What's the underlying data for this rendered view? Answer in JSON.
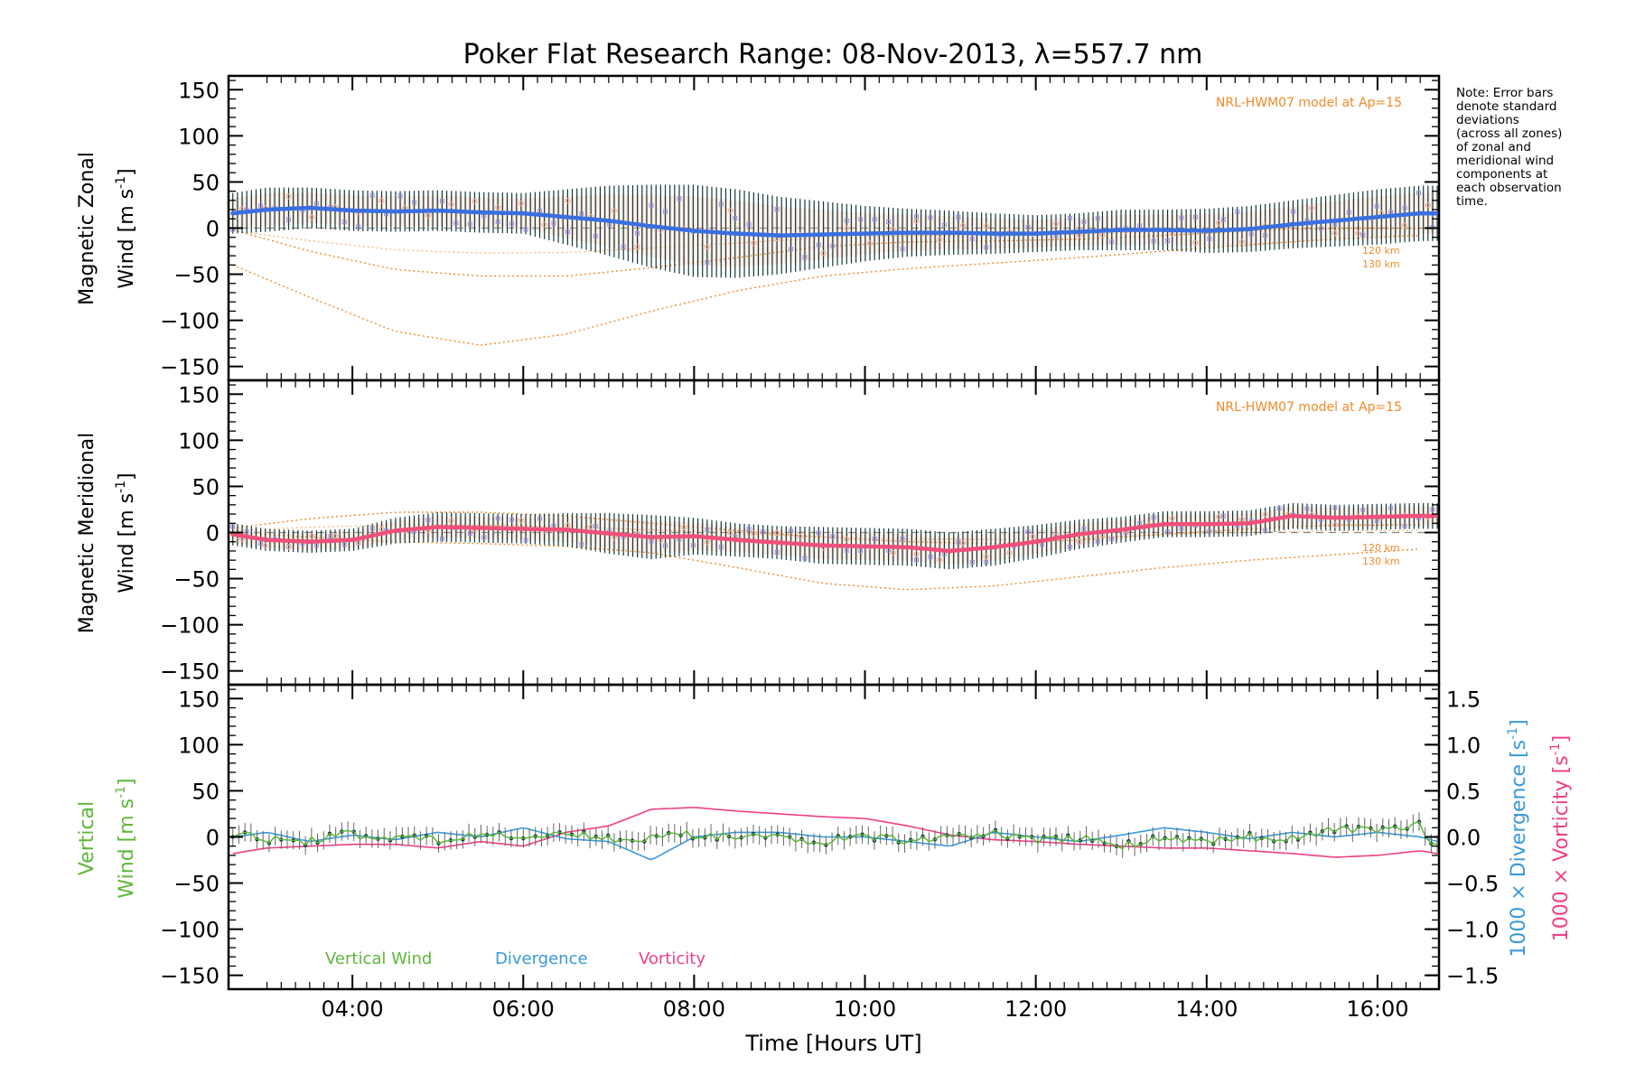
{
  "title": "Poker Flat Research Range: 08-Nov-2013, λ=557.7 nm",
  "note_lines": [
    "Note: Error bars",
    "denote standard",
    "deviations",
    "(across all zones)",
    "of zonal and",
    "meridional wind",
    "components at",
    "each observation",
    "time."
  ],
  "colors": {
    "zonal": "#3a6fe0",
    "meridional": "#f0507a",
    "vertical": "#5db83a",
    "divergence": "#3a9ad8",
    "vorticity": "#ef3f86",
    "model": "#f08a2a",
    "errorbar": "#153a3a",
    "zone_a": "#9a8fe0",
    "zone_b": "#f5b39a"
  },
  "chart_data": [
    {
      "type": "line",
      "panel": "zonal",
      "ylabel_line1": "Magnetic Zonal",
      "ylabel_line2": "Wind",
      "ylabel_units": "[m s",
      "ylabel_exp": "-1",
      "ylabel_close": "]",
      "ylim": [
        -165,
        165
      ],
      "yticks": [
        150,
        100,
        50,
        0,
        -50,
        -100,
        -150
      ],
      "model_label": "NRL-HWM07 model at Ap=15",
      "model_heights": [
        "120 km",
        "130 km"
      ],
      "series": [
        {
          "name": "Zonal wind",
          "x": [
            2.6,
            3.0,
            3.5,
            4.0,
            4.5,
            5.0,
            5.5,
            6.0,
            6.5,
            7.0,
            7.5,
            8.0,
            8.5,
            9.0,
            9.5,
            10.0,
            10.5,
            11.0,
            11.5,
            12.0,
            12.5,
            13.0,
            13.5,
            14.0,
            14.5,
            15.0,
            15.5,
            16.0,
            16.5,
            16.7
          ],
          "y": [
            16,
            20,
            22,
            19,
            18,
            19,
            17,
            16,
            12,
            8,
            2,
            -3,
            -6,
            -8,
            -7,
            -6,
            -5,
            -5,
            -6,
            -6,
            -4,
            -2,
            -2,
            -3,
            -1,
            4,
            8,
            12,
            16,
            16
          ]
        },
        {
          "name": "Zonal std-dev",
          "values": [
            22,
            24,
            22,
            22,
            22,
            22,
            22,
            22,
            30,
            38,
            45,
            50,
            48,
            42,
            36,
            30,
            26,
            24,
            22,
            20,
            20,
            22,
            22,
            24,
            25,
            26,
            28,
            30,
            30,
            30
          ]
        },
        {
          "name": "Model 120 km",
          "x": [
            2.6,
            3.5,
            4.5,
            5.5,
            6.5,
            7.5,
            8.5,
            9.5,
            10.5,
            11.5,
            12.5,
            13.5,
            14.5,
            15.5,
            16.5
          ],
          "y": [
            -2,
            -25,
            -45,
            -52,
            -52,
            -43,
            -32,
            -20,
            -15,
            -14,
            -12,
            -8,
            -3,
            0,
            0
          ]
        },
        {
          "name": "Model 130 km",
          "x": [
            2.6,
            3.5,
            4.5,
            5.5,
            6.5,
            7.5,
            8.5,
            9.5,
            10.5,
            11.5,
            12.5,
            13.5,
            14.5,
            15.5,
            16.5
          ],
          "y": [
            -40,
            -75,
            -112,
            -127,
            -115,
            -90,
            -68,
            -52,
            -44,
            -38,
            -32,
            -25,
            -18,
            -12,
            -8
          ]
        }
      ]
    },
    {
      "type": "line",
      "panel": "meridional",
      "ylabel_line1": "Magnetic Meridional",
      "ylabel_line2": "Wind",
      "ylabel_units": "[m s",
      "ylabel_exp": "-1",
      "ylabel_close": "]",
      "ylim": [
        -165,
        165
      ],
      "yticks": [
        150,
        100,
        50,
        0,
        -50,
        -100,
        -150
      ],
      "model_label": "NRL-HWM07 model at Ap=15",
      "model_heights": [
        "120 km",
        "130 km"
      ],
      "series": [
        {
          "name": "Meridional wind",
          "x": [
            2.6,
            3.0,
            3.5,
            4.0,
            4.5,
            5.0,
            5.5,
            6.0,
            6.5,
            7.0,
            7.5,
            8.0,
            8.5,
            9.0,
            9.5,
            10.0,
            10.5,
            11.0,
            11.5,
            12.0,
            12.5,
            13.0,
            13.5,
            14.0,
            14.5,
            15.0,
            15.5,
            16.0,
            16.5,
            16.7
          ],
          "y": [
            -2,
            -8,
            -10,
            -8,
            2,
            6,
            5,
            4,
            3,
            -1,
            -5,
            -4,
            -8,
            -11,
            -14,
            -15,
            -16,
            -20,
            -16,
            -10,
            -2,
            3,
            9,
            9,
            10,
            18,
            16,
            17,
            18,
            18
          ]
        },
        {
          "name": "Meridional std-dev",
          "values": [
            12,
            12,
            12,
            12,
            14,
            16,
            16,
            16,
            18,
            22,
            24,
            20,
            18,
            18,
            20,
            20,
            20,
            20,
            20,
            18,
            16,
            14,
            14,
            14,
            14,
            14,
            14,
            14,
            14,
            14
          ]
        },
        {
          "name": "Model 120 km",
          "x": [
            2.6,
            3.5,
            4.5,
            5.5,
            6.5,
            7.5,
            8.5,
            9.5,
            10.5,
            11.5,
            12.5,
            13.5,
            14.5,
            15.5,
            16.5
          ],
          "y": [
            5,
            15,
            22,
            22,
            18,
            10,
            2,
            -5,
            -10,
            -12,
            -8,
            -2,
            4,
            8,
            8
          ]
        },
        {
          "name": "Model 130 km",
          "x": [
            2.6,
            3.5,
            4.5,
            5.5,
            6.5,
            7.5,
            8.5,
            9.5,
            10.5,
            11.5,
            12.5,
            13.5,
            14.5,
            15.5,
            16.5
          ],
          "y": [
            0,
            -5,
            -10,
            -12,
            -15,
            -22,
            -38,
            -55,
            -62,
            -58,
            -48,
            -38,
            -30,
            -24,
            -18
          ]
        }
      ]
    },
    {
      "type": "line",
      "panel": "vertical",
      "ylabel_line1": "Vertical",
      "ylabel_line2": "Wind",
      "ylabel_units": "[m s",
      "ylabel_exp": "-1",
      "ylabel_close": "]",
      "ylim": [
        -165,
        165
      ],
      "yticks": [
        150,
        100,
        50,
        0,
        -50,
        -100,
        -150
      ],
      "y2lim": [
        -1.65,
        1.65
      ],
      "y2ticks": [
        "1.5",
        "1.0",
        "0.5",
        "0.0",
        "−0.5",
        "−1.0",
        "−1.5"
      ],
      "y2label_div": "1000 × Divergence",
      "y2label_vor": "1000 × Vorticity",
      "y2label_units": "[s",
      "y2label_exp": "-1",
      "y2label_close": "]",
      "legend": [
        "Vertical Wind",
        "Divergence",
        "Vorticity"
      ],
      "series": [
        {
          "name": "Vertical Wind",
          "x": [
            2.6,
            3.0,
            3.5,
            4.0,
            4.5,
            5.0,
            5.5,
            6.0,
            6.5,
            7.0,
            7.5,
            8.0,
            8.5,
            9.0,
            9.5,
            10.0,
            10.5,
            11.0,
            11.5,
            12.0,
            12.5,
            13.0,
            13.5,
            14.0,
            14.5,
            15.0,
            15.5,
            16.0,
            16.5,
            16.7
          ],
          "y": [
            5,
            -2,
            -5,
            3,
            0,
            -3,
            2,
            0,
            5,
            -3,
            0,
            3,
            -2,
            0,
            -5,
            2,
            -3,
            -1,
            5,
            -5,
            0,
            -8,
            -2,
            -5,
            0,
            -2,
            8,
            5,
            12,
            -10
          ]
        },
        {
          "name": "Divergence",
          "x": [
            2.6,
            3.0,
            3.5,
            4.0,
            4.5,
            5.0,
            5.5,
            6.0,
            6.5,
            7.0,
            7.5,
            8.0,
            8.5,
            9.0,
            9.5,
            10.0,
            10.5,
            11.0,
            11.5,
            12.0,
            12.5,
            13.0,
            13.5,
            14.0,
            14.5,
            15.0,
            15.5,
            16.0,
            16.5,
            16.7
          ],
          "y": [
            0.0,
            0.05,
            -0.05,
            0.02,
            -0.03,
            0.05,
            0.0,
            0.1,
            -0.02,
            -0.05,
            -0.25,
            0.0,
            0.05,
            0.05,
            0.0,
            0.0,
            -0.05,
            -0.1,
            0.05,
            0.0,
            -0.05,
            0.02,
            0.1,
            0.05,
            -0.02,
            0.05,
            0.0,
            0.05,
            0.0,
            -0.05
          ]
        },
        {
          "name": "Vorticity",
          "x": [
            2.6,
            3.0,
            3.5,
            4.0,
            4.5,
            5.0,
            5.5,
            6.0,
            6.5,
            7.0,
            7.5,
            8.0,
            8.5,
            9.0,
            9.5,
            10.0,
            10.5,
            11.0,
            11.5,
            12.0,
            12.5,
            13.0,
            13.5,
            14.0,
            14.5,
            15.0,
            15.5,
            16.0,
            16.5,
            16.7
          ],
          "y": [
            -0.18,
            -0.12,
            -0.1,
            -0.08,
            -0.08,
            -0.12,
            -0.05,
            -0.1,
            0.05,
            0.12,
            0.3,
            0.32,
            0.28,
            0.25,
            0.22,
            0.2,
            0.12,
            0.02,
            -0.03,
            -0.05,
            -0.08,
            -0.1,
            -0.12,
            -0.12,
            -0.15,
            -0.18,
            -0.22,
            -0.2,
            -0.15,
            -0.18
          ]
        }
      ]
    }
  ],
  "xaxis": {
    "label": "Time [Hours UT]",
    "xlim": [
      2.55,
      16.72
    ],
    "ticks": [
      4,
      6,
      8,
      10,
      12,
      14,
      16
    ],
    "tick_labels": [
      "04:00",
      "06:00",
      "08:00",
      "10:00",
      "12:00",
      "14:00",
      "16:00"
    ]
  }
}
